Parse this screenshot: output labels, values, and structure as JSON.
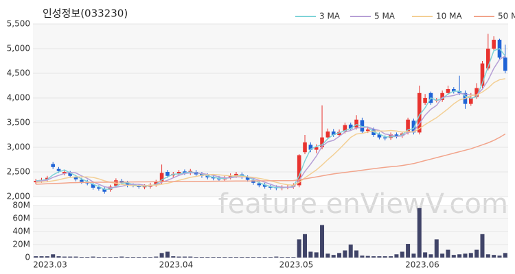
{
  "chart_data": {
    "type": "candlestick",
    "title": "인성정보(033230)",
    "watermark": "feature.enViewV.com",
    "categories": [
      "2023.03",
      null,
      null,
      null,
      null,
      null,
      null,
      null,
      null,
      null,
      null,
      null,
      null,
      null,
      null,
      null,
      null,
      null,
      null,
      null,
      null,
      null,
      "2023.04",
      null,
      null,
      null,
      null,
      null,
      null,
      null,
      null,
      null,
      null,
      null,
      null,
      null,
      null,
      null,
      null,
      null,
      null,
      null,
      null,
      "2023.05",
      null,
      null,
      null,
      null,
      null,
      null,
      null,
      null,
      null,
      null,
      null,
      null,
      null,
      null,
      null,
      null,
      null,
      null,
      null,
      null,
      null,
      "2023.06",
      null,
      null,
      null,
      null,
      null,
      null,
      null,
      null,
      null,
      null,
      null,
      null,
      null,
      null,
      null,
      null,
      null
    ],
    "up_color": "#e8332f",
    "down_color": "#1f63d6",
    "volume_color": "#404468",
    "open": [
      2290,
      2320,
      2340,
      2660,
      2560,
      2470,
      2480,
      2400,
      2340,
      2300,
      2250,
      2190,
      2160,
      2140,
      2220,
      2320,
      2280,
      2230,
      2210,
      2190,
      2200,
      2240,
      2300,
      2500,
      2430,
      2470,
      2510,
      2480,
      2500,
      2460,
      2430,
      2400,
      2380,
      2350,
      2390,
      2420,
      2450,
      2390,
      2330,
      2270,
      2240,
      2200,
      2190,
      2170,
      2190,
      2200,
      2230,
      2900,
      3050,
      2950,
      3000,
      3200,
      3320,
      3250,
      3320,
      3460,
      3400,
      3550,
      3330,
      3360,
      3260,
      3200,
      3190,
      3260,
      3230,
      3300,
      3540,
      3300,
      3900,
      4100,
      3950,
      3960,
      4100,
      4180,
      4140,
      4100,
      3880,
      4020,
      4250,
      4600,
      5000,
      5180,
      4820
    ],
    "high": [
      2360,
      2380,
      2420,
      2700,
      2600,
      2540,
      2520,
      2440,
      2380,
      2340,
      2290,
      2230,
      2200,
      2240,
      2370,
      2360,
      2320,
      2270,
      2250,
      2250,
      2280,
      2340,
      2650,
      2540,
      2500,
      2540,
      2550,
      2560,
      2540,
      2500,
      2470,
      2440,
      2420,
      2420,
      2470,
      2500,
      2490,
      2430,
      2370,
      2310,
      2280,
      2240,
      2230,
      2230,
      2240,
      2270,
      2860,
      3250,
      3100,
      3060,
      3850,
      3380,
      3370,
      3360,
      3500,
      3500,
      3650,
      3600,
      3420,
      3400,
      3300,
      3240,
      3300,
      3300,
      3320,
      3600,
      3580,
      4250,
      4080,
      4130,
      4000,
      4150,
      4250,
      4220,
      4450,
      4150,
      4100,
      4300,
      4750,
      5300,
      5250,
      5200,
      5080
    ],
    "low": [
      2250,
      2280,
      2300,
      2560,
      2480,
      2430,
      2380,
      2310,
      2260,
      2230,
      2140,
      2120,
      2060,
      2100,
      2180,
      2240,
      2190,
      2190,
      2160,
      2150,
      2160,
      2200,
      2260,
      2380,
      2390,
      2430,
      2440,
      2440,
      2410,
      2380,
      2350,
      2330,
      2310,
      2310,
      2350,
      2380,
      2360,
      2300,
      2240,
      2190,
      2160,
      2140,
      2130,
      2130,
      2150,
      2160,
      2190,
      2860,
      2900,
      2880,
      2960,
      3160,
      3210,
      3210,
      3280,
      3340,
      3360,
      3280,
      3290,
      3210,
      3160,
      3140,
      3150,
      3180,
      3190,
      3260,
      3260,
      3260,
      3860,
      3860,
      3910,
      3920,
      4060,
      4090,
      4060,
      3780,
      3840,
      3980,
      4200,
      4560,
      4950,
      4780,
      4500
    ],
    "close": [
      2320,
      2340,
      2380,
      2600,
      2520,
      2500,
      2420,
      2350,
      2300,
      2270,
      2180,
      2160,
      2100,
      2200,
      2330,
      2280,
      2230,
      2220,
      2200,
      2210,
      2240,
      2300,
      2480,
      2420,
      2460,
      2500,
      2480,
      2520,
      2450,
      2420,
      2390,
      2370,
      2350,
      2380,
      2430,
      2460,
      2400,
      2340,
      2280,
      2230,
      2200,
      2180,
      2170,
      2190,
      2200,
      2230,
      2840,
      3100,
      2950,
      3000,
      3200,
      3320,
      3250,
      3310,
      3450,
      3380,
      3560,
      3320,
      3360,
      3250,
      3200,
      3180,
      3260,
      3220,
      3280,
      3560,
      3300,
      4100,
      4000,
      3900,
      3960,
      4100,
      4180,
      4130,
      4100,
      3880,
      4000,
      4200,
      4700,
      5000,
      5180,
      4820,
      4550
    ],
    "volume": [
      2000000,
      2000000,
      2000000,
      5000000,
      2000000,
      1500000,
      1500000,
      1500000,
      1000000,
      1000000,
      1500000,
      1000000,
      1000000,
      1000000,
      1000000,
      1500000,
      1000000,
      1000000,
      1000000,
      1000000,
      1000000,
      1500000,
      7000000,
      9000000,
      2000000,
      1500000,
      1500000,
      1500000,
      1000000,
      1000000,
      1000000,
      1000000,
      1000000,
      1000000,
      1000000,
      1000000,
      1000000,
      1000000,
      1000000,
      1000000,
      1000000,
      1000000,
      1500000,
      1000000,
      1000000,
      1000000,
      28000000,
      36000000,
      9000000,
      8000000,
      50000000,
      6000000,
      4000000,
      7000000,
      11000000,
      20000000,
      11000000,
      3000000,
      2500000,
      2000000,
      2000000,
      2000000,
      2000000,
      5000000,
      9000000,
      21000000,
      6000000,
      76000000,
      8000000,
      5000000,
      28000000,
      6000000,
      12000000,
      4000000,
      5000000,
      6000000,
      7000000,
      12000000,
      36000000,
      5000000,
      4000000,
      3000000,
      7000000
    ],
    "series": [
      {
        "name": "3 MA",
        "color": "#7fd3d8",
        "values": [
          2320,
          2330,
          2347,
          2440,
          2500,
          2540,
          2480,
          2423,
          2357,
          2307,
          2250,
          2203,
          2147,
          2153,
          2210,
          2270,
          2280,
          2243,
          2217,
          2210,
          2217,
          2250,
          2340,
          2400,
          2453,
          2460,
          2480,
          2500,
          2483,
          2463,
          2420,
          2393,
          2370,
          2367,
          2387,
          2423,
          2430,
          2400,
          2340,
          2283,
          2237,
          2203,
          2183,
          2180,
          2187,
          2207,
          2423,
          2723,
          2963,
          3017,
          3050,
          3173,
          3257,
          3293,
          3337,
          3380,
          3463,
          3420,
          3413,
          3310,
          3270,
          3210,
          3213,
          3220,
          3253,
          3353,
          3380,
          3653,
          3800,
          4000,
          3953,
          3987,
          4080,
          4137,
          4137,
          4037,
          3993,
          4027,
          4300,
          4633,
          4960,
          5000,
          4850
        ]
      },
      {
        "name": "5 MA",
        "color": "#b7a0d6",
        "values": [
          2310,
          2320,
          2335,
          2390,
          2430,
          2470,
          2490,
          2480,
          2420,
          2370,
          2300,
          2250,
          2200,
          2180,
          2190,
          2210,
          2230,
          2250,
          2250,
          2230,
          2220,
          2240,
          2290,
          2330,
          2380,
          2430,
          2470,
          2480,
          2480,
          2470,
          2450,
          2430,
          2400,
          2380,
          2380,
          2400,
          2400,
          2400,
          2370,
          2330,
          2290,
          2250,
          2210,
          2190,
          2190,
          2190,
          2330,
          2510,
          2660,
          2820,
          3020,
          3110,
          3140,
          3220,
          3310,
          3340,
          3390,
          3400,
          3410,
          3370,
          3340,
          3270,
          3250,
          3220,
          3230,
          3300,
          3320,
          3480,
          3650,
          3770,
          3850,
          4010,
          4030,
          4050,
          4090,
          4080,
          4060,
          4060,
          4180,
          4360,
          4600,
          4780,
          4850
        ]
      },
      {
        "name": "10 MA",
        "color": "#f3cf94",
        "values": [
          2290,
          2295,
          2300,
          2320,
          2340,
          2370,
          2390,
          2400,
          2400,
          2400,
          2390,
          2360,
          2320,
          2290,
          2270,
          2250,
          2230,
          2220,
          2220,
          2220,
          2230,
          2230,
          2250,
          2270,
          2300,
          2330,
          2360,
          2390,
          2410,
          2430,
          2440,
          2450,
          2440,
          2430,
          2420,
          2420,
          2410,
          2400,
          2390,
          2370,
          2350,
          2320,
          2290,
          2260,
          2240,
          2230,
          2290,
          2380,
          2460,
          2540,
          2640,
          2750,
          2850,
          2960,
          3080,
          3200,
          3270,
          3280,
          3310,
          3330,
          3330,
          3330,
          3340,
          3330,
          3310,
          3320,
          3310,
          3380,
          3460,
          3530,
          3600,
          3690,
          3780,
          3880,
          3960,
          3990,
          4050,
          4060,
          4120,
          4200,
          4310,
          4370,
          4390
        ]
      },
      {
        "name": "50 MA",
        "color": "#f2a48b",
        "values": [
          2250,
          2255,
          2260,
          2265,
          2270,
          2275,
          2280,
          2283,
          2286,
          2289,
          2290,
          2291,
          2292,
          2293,
          2294,
          2295,
          2296,
          2297,
          2298,
          2299,
          2300,
          2301,
          2302,
          2303,
          2304,
          2305,
          2306,
          2307,
          2308,
          2309,
          2310,
          2311,
          2312,
          2313,
          2314,
          2315,
          2316,
          2317,
          2318,
          2319,
          2320,
          2321,
          2322,
          2323,
          2324,
          2325,
          2340,
          2360,
          2380,
          2400,
          2420,
          2440,
          2460,
          2475,
          2490,
          2505,
          2520,
          2535,
          2550,
          2565,
          2580,
          2595,
          2605,
          2615,
          2630,
          2650,
          2670,
          2700,
          2730,
          2760,
          2790,
          2820,
          2850,
          2880,
          2910,
          2940,
          2970,
          3010,
          3050,
          3090,
          3140,
          3200,
          3270
        ]
      }
    ],
    "ylim": [
      2000,
      5500
    ],
    "yticks": [
      {
        "value": 2000,
        "label": "2,000"
      },
      {
        "value": 2500,
        "label": "2,500"
      },
      {
        "value": 3000,
        "label": "3,000"
      },
      {
        "value": 3500,
        "label": "3,500"
      },
      {
        "value": 4000,
        "label": "4,000"
      },
      {
        "value": 4500,
        "label": "4,500"
      },
      {
        "value": 5000,
        "label": "5,000"
      },
      {
        "value": 5500,
        "label": "5,500"
      }
    ],
    "y2lim": [
      0,
      80000000
    ],
    "y2ticks": [
      0,
      {
        "value": 20000000,
        "label": "20M"
      },
      {
        "value": 40000000,
        "label": "40M"
      },
      {
        "value": 60000000,
        "label": "60M"
      },
      {
        "value": 80000000,
        "label": "80M"
      }
    ]
  }
}
